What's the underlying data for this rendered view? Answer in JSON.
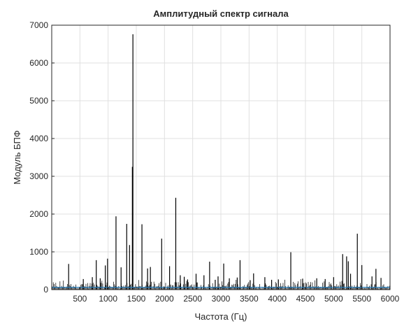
{
  "chart_data": {
    "type": "line",
    "title": "Амплитудный спектр сигнала",
    "xlabel": "Частота (Гц)",
    "ylabel": "Модуль БПФ",
    "xlim": [
      0,
      6000
    ],
    "ylim": [
      0,
      7000
    ],
    "grid": true,
    "x_ticks": [
      500,
      1000,
      1500,
      2000,
      2500,
      3000,
      3500,
      4000,
      4500,
      5000,
      5500,
      6000
    ],
    "x_tick_labels": [
      "500",
      "1000",
      "1500",
      "2000",
      "2500",
      "3000",
      "3500",
      "4000",
      "4500",
      "5000",
      "5500",
      "6000"
    ],
    "y_ticks": [
      0,
      1000,
      2000,
      3000,
      4000,
      5000,
      6000,
      7000
    ],
    "y_tick_labels": [
      "0",
      "1000",
      "2000",
      "3000",
      "4000",
      "5000",
      "6000",
      "7000"
    ],
    "colors": {
      "spectrum": "#000000",
      "baseline": "#1f77b4",
      "grid": "#e0e0e0",
      "axes": "#262626"
    },
    "series": [
      {
        "x": [
          300,
          560,
          720,
          790,
          860,
          950,
          990,
          1140,
          1230,
          1330,
          1380,
          1430,
          1440,
          1600,
          1700,
          1750,
          1950,
          2090,
          2200,
          2280,
          2350,
          2410,
          2560,
          2700,
          2800,
          2900,
          2950,
          3050,
          3150,
          3290,
          3340,
          3520,
          3580,
          3780,
          3900,
          4020,
          4240,
          4450,
          4700,
          4850,
          5000,
          5160,
          5230,
          5260,
          5300,
          5420,
          5500,
          5680,
          5750,
          5840
        ],
        "y": [
          680,
          280,
          330,
          780,
          300,
          640,
          820,
          1940,
          590,
          1740,
          1180,
          3250,
          6760,
          1730,
          560,
          600,
          1350,
          620,
          2430,
          380,
          340,
          270,
          420,
          380,
          740,
          260,
          350,
          690,
          300,
          320,
          780,
          250,
          430,
          330,
          260,
          270,
          990,
          290,
          300,
          280,
          330,
          940,
          880,
          750,
          420,
          1480,
          650,
          350,
          550,
          310
        ]
      },
      {
        "x": [
          0,
          6000
        ],
        "y": [
          60,
          60
        ]
      }
    ]
  }
}
